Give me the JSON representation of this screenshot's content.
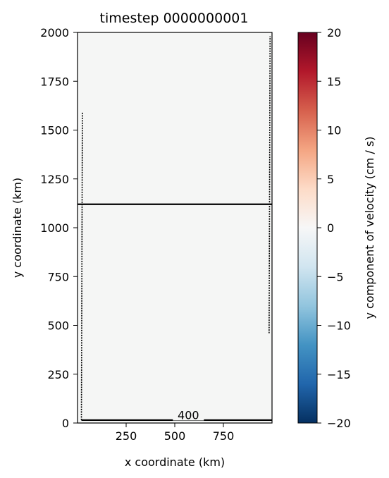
{
  "chart_data": {
    "type": "heatmap",
    "title": "timestep 0000000001",
    "xlabel": "x coordinate (km)",
    "ylabel": "y coordinate (km)",
    "xlim": [
      0,
      1000
    ],
    "ylim": [
      0,
      2000
    ],
    "xticks": [
      250,
      500,
      750
    ],
    "yticks": [
      0,
      250,
      500,
      750,
      1000,
      1250,
      1500,
      1750,
      2000
    ],
    "colorbar": {
      "label": "y component of velocity (cm / s)",
      "min": -20,
      "max": 20,
      "ticks": [
        20,
        15,
        10,
        5,
        0,
        -5,
        -10,
        -15,
        -20
      ],
      "colormap": "RdBu_r"
    },
    "field": {
      "description_value": 0,
      "fill_color": "#f5f6f5"
    },
    "contour_labels": [
      {
        "text": "400",
        "x": 570,
        "y": 20
      }
    ],
    "contours": [
      {
        "name": "horizontal-interface",
        "points": [
          [
            0,
            1120
          ],
          [
            1000,
            1120
          ]
        ]
      },
      {
        "name": "bottom-contour",
        "points": [
          [
            20,
            15
          ],
          [
            1000,
            15
          ]
        ]
      },
      {
        "name": "left-wall-contour",
        "points": [
          [
            20,
            15
          ],
          [
            25,
            1590
          ]
        ]
      },
      {
        "name": "right-wall-contour",
        "points": [
          [
            985,
            460
          ],
          [
            990,
            1980
          ]
        ]
      }
    ]
  }
}
